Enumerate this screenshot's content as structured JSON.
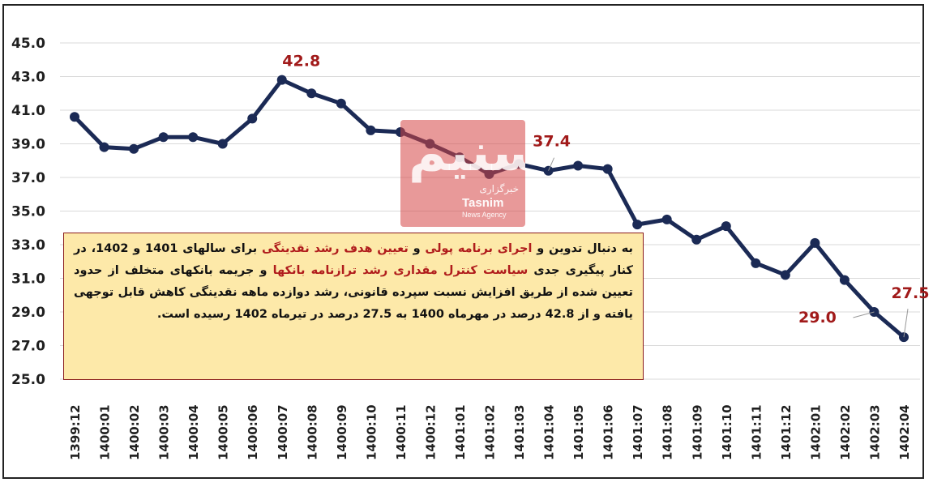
{
  "chart_data": {
    "type": "line",
    "title": "",
    "xlabel": "",
    "ylabel": "",
    "ylim": [
      25.0,
      45.0
    ],
    "yticks": [
      "25.0",
      "27.0",
      "29.0",
      "31.0",
      "33.0",
      "35.0",
      "37.0",
      "39.0",
      "41.0",
      "43.0",
      "45.0"
    ],
    "grid": true,
    "categories": [
      "1399:12",
      "1400:01",
      "1400:02",
      "1400:03",
      "1400:04",
      "1400:05",
      "1400:06",
      "1400:07",
      "1400:08",
      "1400:09",
      "1400:10",
      "1400:11",
      "1400:12",
      "1401:01",
      "1401:02",
      "1401:03",
      "1401:04",
      "1401:05",
      "1401:06",
      "1401:07",
      "1401:08",
      "1401:09",
      "1401:10",
      "1401:11",
      "1401:12",
      "1402:01",
      "1402:02",
      "1402:03",
      "1402:04"
    ],
    "series": [
      {
        "values": [
          40.6,
          38.8,
          38.7,
          39.4,
          39.4,
          39.0,
          40.5,
          42.8,
          42.0,
          41.4,
          39.8,
          39.7,
          39.0,
          38.2,
          37.2,
          37.8,
          37.4,
          37.7,
          37.5,
          34.2,
          34.5,
          33.3,
          34.1,
          31.9,
          31.2,
          33.1,
          30.9,
          29.0,
          27.5
        ],
        "color": "#1b2a55"
      }
    ],
    "data_labels": [
      {
        "index": 7,
        "text": "42.8"
      },
      {
        "index": 16,
        "text": "37.4"
      },
      {
        "index": 27,
        "text": "29.0"
      },
      {
        "index": 28,
        "text": "27.5"
      }
    ],
    "label_color": "#a11a1a",
    "line_color": "#1b2a55"
  },
  "note": {
    "segments": [
      {
        "text": "به دنبال تدوین و ",
        "hl": false
      },
      {
        "text": "اجرای برنامه پولی",
        "hl": true
      },
      {
        "text": " و ",
        "hl": false
      },
      {
        "text": "تعیین هدف رشد نقدینگی",
        "hl": true
      },
      {
        "text": " برای سالهای 1401 و 1402، در کنار پیگیری جدی ",
        "hl": false
      },
      {
        "text": "سیاست کنترل مقداری رشد ترازنامه بانکها",
        "hl": true
      },
      {
        "text": " و جریمه بانکهای متخلف از حدود تعیین شده از طریق افزایش نسبت سپرده قانونی، رشد دوازده ماهه نقدینگی کاهش قابل توجهی یافته و از 42.8 درصد در مهرماه 1400 به 27.5 درصد در تیرماه 1402 رسیده است.",
        "hl": false
      }
    ],
    "background": "#fde9a9",
    "border": "#8a1c1c",
    "highlight_color": "#b01c1c"
  },
  "watermark": {
    "main": "تسنیم",
    "sub": "خبرگزاری",
    "brand": "Tasnim",
    "agency": "News Agency"
  }
}
